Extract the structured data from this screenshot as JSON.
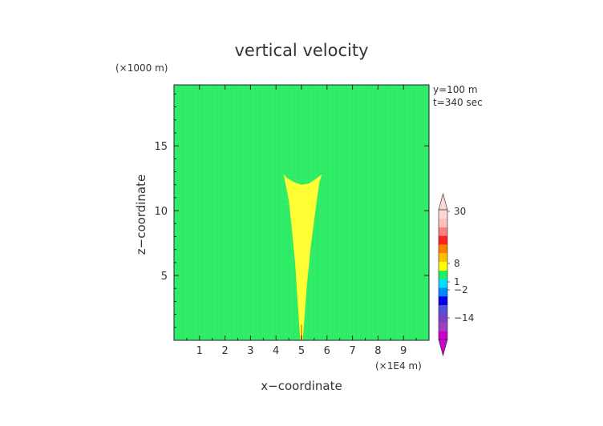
{
  "chart_data": {
    "type": "heatmap",
    "title": "vertical velocity",
    "xlabel": "x−coordinate",
    "ylabel": "z−coordinate",
    "x_unit": "(×1E4 m)",
    "y_unit": "(×1000 m)",
    "xlim": [
      0,
      10
    ],
    "ylim": [
      0,
      19.7
    ],
    "x_ticks": [
      "1",
      "2",
      "3",
      "4",
      "5",
      "6",
      "7",
      "8",
      "9"
    ],
    "y_ticks": [
      "5",
      "10",
      "15"
    ],
    "annotations": [
      "y=100 m",
      "t=340 sec"
    ],
    "colorbar": {
      "tick_labels": [
        "30",
        "8",
        "1",
        "−2",
        "−14"
      ],
      "colors": [
        "#cc00cc",
        "#a040c0",
        "#7a40c8",
        "#5050d8",
        "#0000ee",
        "#0088ff",
        "#00e0ff",
        "#20f060",
        "#ffff00",
        "#ffc000",
        "#ff8000",
        "#ff2020",
        "#ff8080",
        "#ffc0c0",
        "#ffd6d6"
      ]
    },
    "background_color": "#30ee68",
    "plume": {
      "color": "#ffff33",
      "core_color": "#ff9900",
      "outline": [
        [
          4.95,
          0
        ],
        [
          5.05,
          0
        ],
        [
          5.2,
          4
        ],
        [
          5.35,
          7
        ],
        [
          5.5,
          9.3
        ],
        [
          5.6,
          10.8
        ],
        [
          5.7,
          12.2
        ],
        [
          5.8,
          12.8
        ],
        [
          5.6,
          12.5
        ],
        [
          5.3,
          12.1
        ],
        [
          5.0,
          12.0
        ],
        [
          4.7,
          12.2
        ],
        [
          4.45,
          12.5
        ],
        [
          4.3,
          12.8
        ],
        [
          4.5,
          10.8
        ],
        [
          4.6,
          9.0
        ],
        [
          4.75,
          6
        ],
        [
          4.85,
          3
        ]
      ]
    }
  }
}
